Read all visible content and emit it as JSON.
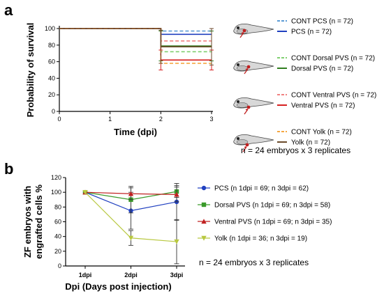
{
  "panel_a": {
    "letter": "a",
    "note": "n = 24 embryos x 3 replicates"
  },
  "panel_b": {
    "letter": "b",
    "note": "n = 24 embryos x 3 replicates"
  },
  "colors": {
    "pcs_cont": "#5b9bd5",
    "pcs": "#1f3fbf",
    "dorsal_cont": "#7fcf6f",
    "dorsal": "#2e7d1f",
    "ventral_cont": "#f08080",
    "ventral": "#d62020",
    "yolk_cont": "#f5a742",
    "yolk": "#6b4a2a",
    "b_pcs": "#2040c0",
    "b_dorsal": "#3a9a2a",
    "b_ventral": "#c02020",
    "b_yolk": "#b8c840",
    "fish_body": "#d8d8d8",
    "fish_outline": "#444444",
    "injection_marker": "#c02020"
  },
  "icons": [
    "zebrafish-embryo-icon",
    "injection-arrow-icon"
  ],
  "chart_data": [
    {
      "type": "line",
      "step": true,
      "xlabel": "Time (dpi)",
      "ylabel": "Probability of survival",
      "xlim": [
        0,
        3
      ],
      "ylim": [
        0,
        100
      ],
      "xticks": [
        0,
        1,
        2,
        3
      ],
      "yticks": [
        0,
        20,
        40,
        60,
        80,
        100
      ],
      "grid": false,
      "legend_position": "right",
      "x": [
        0,
        2,
        3
      ],
      "series": [
        {
          "name": "CONT PCS",
          "n_label": "(n = 72)",
          "dashed": true,
          "color": "#5b9bd5",
          "values": [
            100,
            97,
            97
          ],
          "error": [
            0,
            0,
            0
          ]
        },
        {
          "name": "PCS",
          "n_label": "(n = 72)",
          "dashed": false,
          "color": "#1f3fbf",
          "values": [
            100,
            93,
            93
          ],
          "error": [
            0,
            0,
            0
          ]
        },
        {
          "name": "CONT Dorsal PVS",
          "n_label": "(n = 72)",
          "dashed": true,
          "color": "#7fcf6f",
          "values": [
            100,
            72,
            72
          ],
          "error": [
            0,
            0,
            0
          ]
        },
        {
          "name": "Dorsal PVS",
          "n_label": "(n = 72)",
          "dashed": false,
          "color": "#2e7d1f",
          "values": [
            100,
            79,
            79
          ],
          "error": [
            0,
            18,
            18
          ]
        },
        {
          "name": "CONT Ventral PVS",
          "n_label": "(n = 72)",
          "dashed": true,
          "color": "#f08080",
          "values": [
            100,
            85,
            85
          ],
          "error": [
            0,
            0,
            0
          ]
        },
        {
          "name": "Ventral PVS",
          "n_label": "(n = 72)",
          "dashed": false,
          "color": "#d62020",
          "values": [
            100,
            62,
            62
          ],
          "error": [
            0,
            12,
            12
          ]
        },
        {
          "name": "CONT Yolk",
          "n_label": "(n = 72)",
          "dashed": true,
          "color": "#f5a742",
          "values": [
            100,
            58,
            58
          ],
          "error": [
            0,
            0,
            0
          ]
        },
        {
          "name": "Yolk",
          "n_label": "(n = 72)",
          "dashed": false,
          "color": "#6b4a2a",
          "values": [
            100,
            78,
            78
          ],
          "error": [
            0,
            20,
            22
          ]
        }
      ]
    },
    {
      "type": "line",
      "xlabel": "Dpi (Days post injection)",
      "ylabel": "ZF embryos with engrafted cells %",
      "ylabel_lines": [
        "ZF embryos with",
        "engrafted cells %"
      ],
      "categories": [
        "1dpi",
        "2dpi",
        "3dpi"
      ],
      "ylim": [
        0,
        120
      ],
      "yticks": [
        0,
        20,
        40,
        60,
        80,
        100,
        120
      ],
      "grid": false,
      "legend_position": "right",
      "series": [
        {
          "name": "PCS",
          "n_label": "(n 1dpi = 69; n 3dpi = 62)",
          "marker": "circle",
          "color": "#2040c0",
          "values": [
            100,
            75,
            87
          ],
          "error": [
            0,
            25,
            25
          ]
        },
        {
          "name": "Dorsal PVS",
          "n_label": "(n 1dpi = 69; n 3dpi = 58)",
          "marker": "square",
          "color": "#3a9a2a",
          "values": [
            100,
            90,
            101
          ],
          "error": [
            0,
            18,
            8
          ]
        },
        {
          "name": "Ventral PVS",
          "n_label": "(n 1dpi = 69; n 3dpi = 35)",
          "marker": "triangle-up",
          "color": "#c02020",
          "values": [
            100,
            98,
            97
          ],
          "error": [
            0,
            8,
            10
          ]
        },
        {
          "name": "Yolk",
          "n_label": "(n 1dpi = 36; n 3dpi = 19)",
          "marker": "triangle-down",
          "color": "#b8c840",
          "values": [
            100,
            38,
            33
          ],
          "error": [
            0,
            10,
            30
          ]
        }
      ]
    }
  ]
}
